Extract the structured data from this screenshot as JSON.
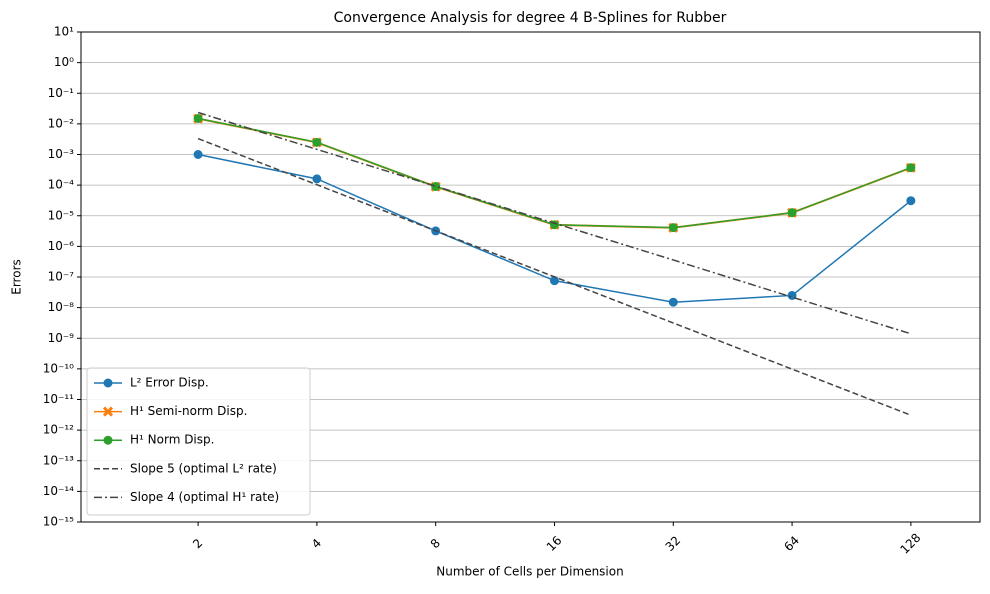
{
  "chart_data": {
    "type": "line",
    "title": "Convergence Analysis for degree 4 B-Splines for Rubber",
    "xlabel": "Number of Cells per Dimension",
    "ylabel": "Errors",
    "x": [
      2,
      4,
      8,
      16,
      32,
      64,
      128
    ],
    "xscale": "log",
    "yscale": "log",
    "grid": "y",
    "legend": "lower left",
    "xlim": [
      1.01,
      191.6
    ],
    "ylim": [
      1e-15,
      10
    ],
    "xticks": [
      2,
      4,
      8,
      16,
      32,
      64,
      128
    ],
    "yticks": [
      {
        "value": 1e-15,
        "label": "10⁻¹⁵"
      },
      {
        "value": 1e-14,
        "label": "10⁻¹⁴"
      },
      {
        "value": 1e-13,
        "label": "10⁻¹³"
      },
      {
        "value": 1e-12,
        "label": "10⁻¹²"
      },
      {
        "value": 1e-11,
        "label": "10⁻¹¹"
      },
      {
        "value": 1e-10,
        "label": "10⁻¹⁰"
      },
      {
        "value": 1e-09,
        "label": "10⁻⁹"
      },
      {
        "value": 1e-08,
        "label": "10⁻⁸"
      },
      {
        "value": 1e-07,
        "label": "10⁻⁷"
      },
      {
        "value": 1e-06,
        "label": "10⁻⁶"
      },
      {
        "value": 1e-05,
        "label": "10⁻⁵"
      },
      {
        "value": 0.0001,
        "label": "10⁻⁴"
      },
      {
        "value": 0.001,
        "label": "10⁻³"
      },
      {
        "value": 0.01,
        "label": "10⁻²"
      },
      {
        "value": 0.1,
        "label": "10⁻¹"
      },
      {
        "value": 1,
        "label": "10⁰"
      },
      {
        "value": 10,
        "label": "10¹"
      }
    ],
    "series": [
      {
        "name": "L² Error Disp.",
        "color": "#1f77b4",
        "marker": "o",
        "linestyle": "solid",
        "values": [
          0.001,
          0.00016,
          3.2e-06,
          7.6e-08,
          1.5e-08,
          2.5e-08,
          3.1e-05
        ]
      },
      {
        "name": "H¹ Semi-norm Disp.",
        "color": "#ff7f0e",
        "marker": "X",
        "linestyle": "solid",
        "values": [
          0.0148,
          0.00248,
          8.9e-05,
          5.05e-06,
          4.05e-06,
          1.25e-05,
          0.000368
        ]
      },
      {
        "name": "H¹ Norm Disp.",
        "color": "#2ca02c",
        "marker": "o",
        "linestyle": "solid",
        "values": [
          0.015,
          0.0025,
          9e-05,
          5.1e-06,
          4.1e-06,
          1.26e-05,
          0.00037
        ]
      },
      {
        "name": "Slope 5 (optimal L² rate)",
        "color": "#444444",
        "marker": "none",
        "linestyle": "dashed",
        "values": [
          0.0033,
          0.000103,
          3.22e-06,
          1.01e-07,
          3.15e-09,
          9.8e-11,
          3.07e-12
        ]
      },
      {
        "name": "Slope 4 (optimal H¹ rate)",
        "color": "#444444",
        "marker": "none",
        "linestyle": "dashdot",
        "values": [
          0.0235,
          0.00147,
          9.2e-05,
          5.7e-06,
          3.6e-07,
          2.2e-08,
          1.4e-09
        ]
      }
    ]
  }
}
